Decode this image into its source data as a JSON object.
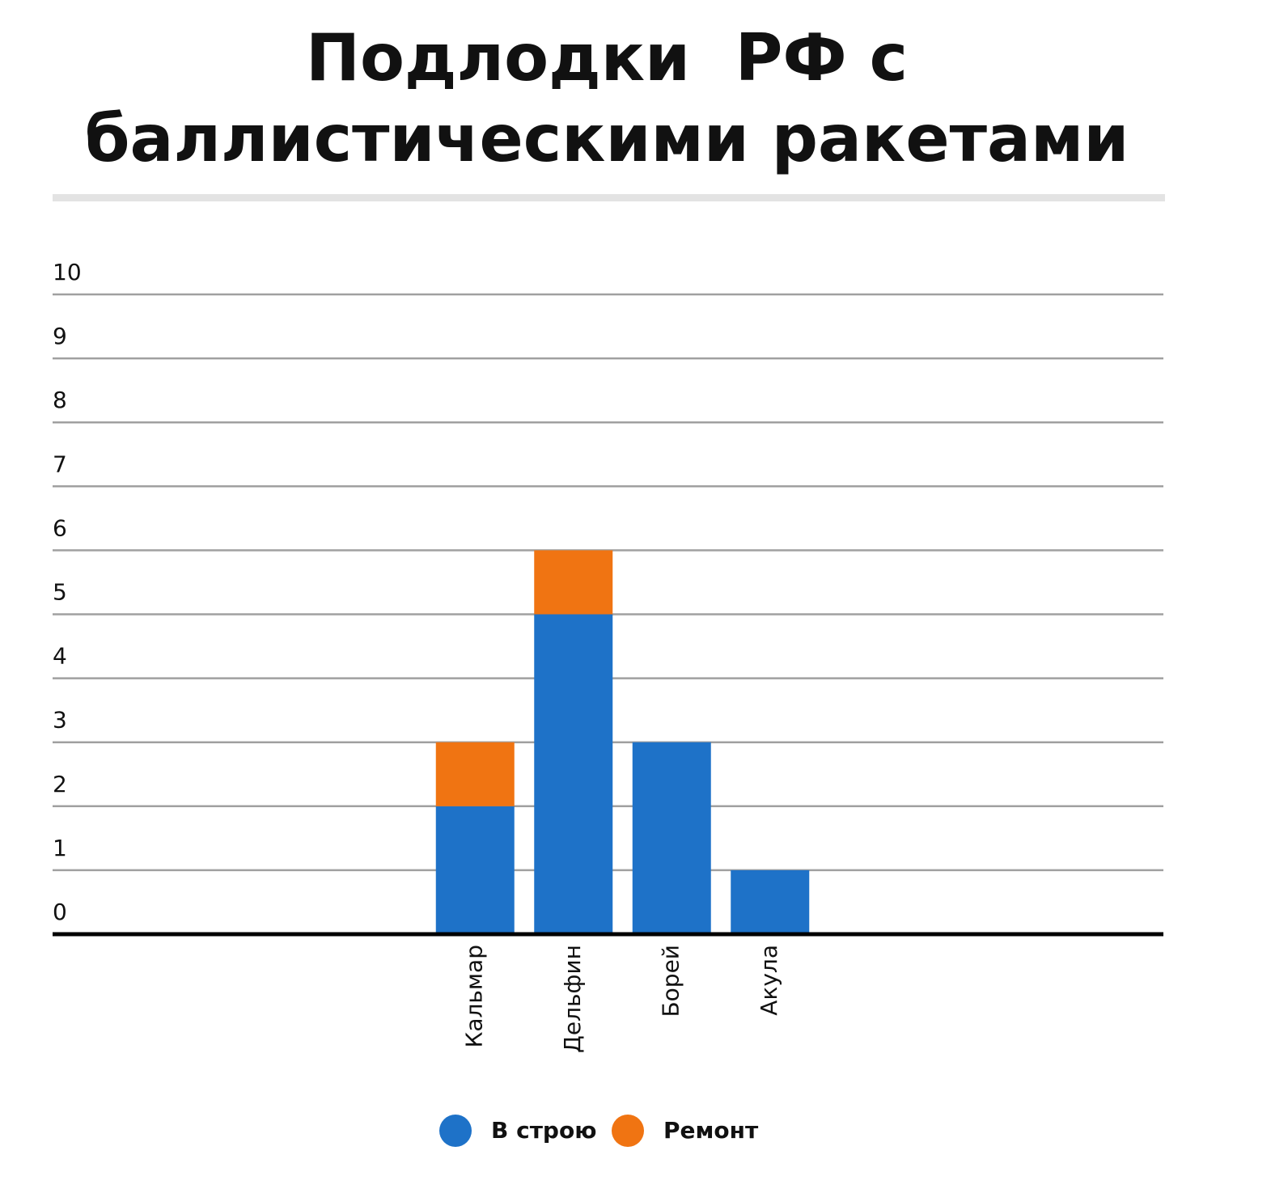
{
  "chart_data": {
    "type": "stacked_bar",
    "title": "Подлодки  РФ с баллистическими ракетами",
    "categories": [
      "Кальмар",
      "Дельфин",
      "Борей",
      "Акула"
    ],
    "series": [
      {
        "name": "В строю",
        "color": "#1e72c8",
        "values": [
          2,
          5,
          3,
          1
        ]
      },
      {
        "name": "Ремонт",
        "color": "#f07412",
        "values": [
          1,
          1,
          0,
          0
        ]
      }
    ],
    "ylim": [
      0,
      10
    ],
    "yticks": [
      0,
      1,
      2,
      3,
      4,
      5,
      6,
      7,
      8,
      9,
      10
    ],
    "grid": true,
    "legend": "bottom"
  }
}
